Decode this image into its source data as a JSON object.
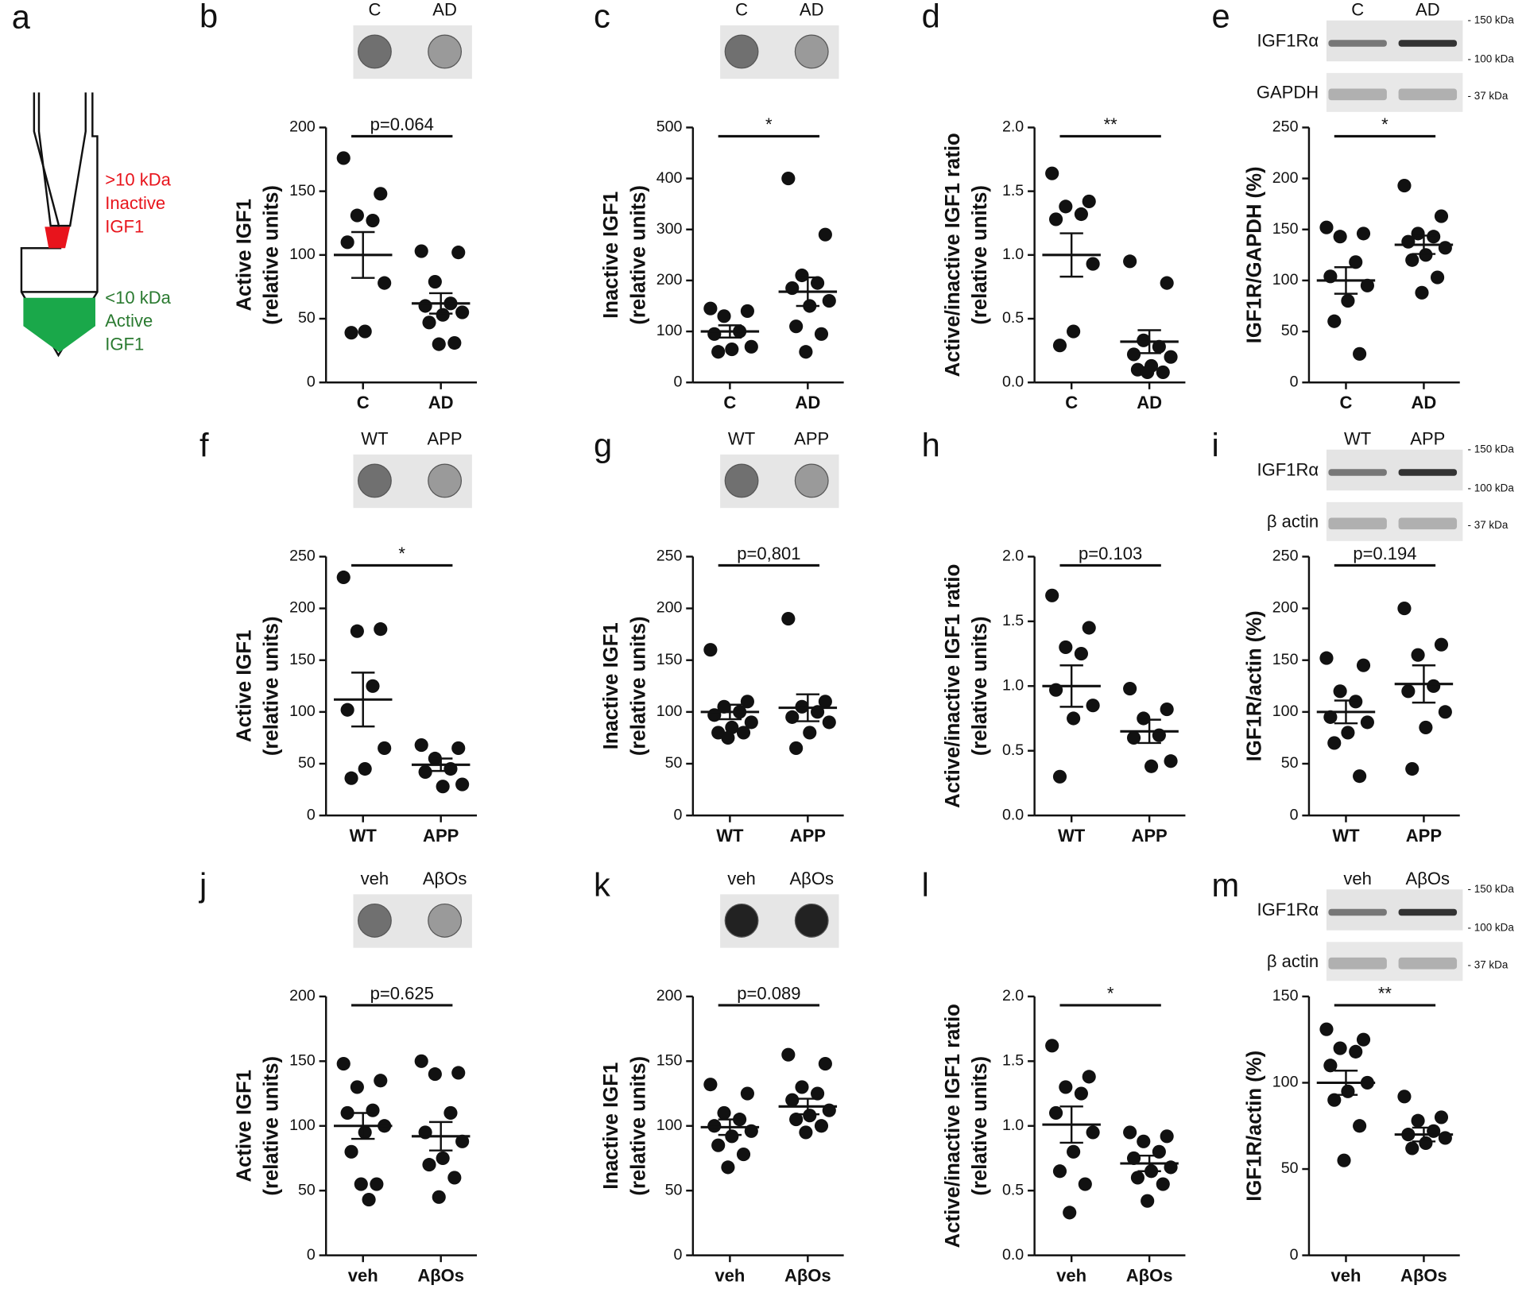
{
  "diagram": {
    "panel": "a",
    "upper_label": [
      ">10 kDa",
      "Inactive",
      "IGF1"
    ],
    "lower_label": [
      "<10 kDa",
      "Active",
      "IGF1"
    ]
  },
  "chart_data": [
    {
      "type": "strip",
      "panel": "b",
      "blot_lanes": [
        "C",
        "AD"
      ],
      "ylabel": [
        "Active IGF1",
        "(relative units)"
      ],
      "categories": [
        "C",
        "AD"
      ],
      "ylim": [
        0,
        200
      ],
      "yticks": [
        0,
        50,
        100,
        150,
        200
      ],
      "color": "#111111",
      "annotation": "p=0.064",
      "groups": [
        {
          "values": [
            176,
            148,
            131,
            127,
            110,
            78,
            40,
            39
          ],
          "mean": 100,
          "sem": 18
        },
        {
          "values": [
            103,
            102,
            79,
            62,
            60,
            55,
            53,
            47,
            31,
            30
          ],
          "mean": 62,
          "sem": 8
        }
      ]
    },
    {
      "type": "strip",
      "panel": "c",
      "blot_lanes": [
        "C",
        "AD"
      ],
      "ylabel": [
        "Inactive IGF1",
        "(relative units)"
      ],
      "categories": [
        "C",
        "AD"
      ],
      "ylim": [
        0,
        500
      ],
      "yticks": [
        0,
        100,
        200,
        300,
        400,
        500
      ],
      "color": "#111111",
      "annotation": "*",
      "groups": [
        {
          "values": [
            145,
            140,
            130,
            100,
            95,
            70,
            65,
            60
          ],
          "mean": 100,
          "sem": 12
        },
        {
          "values": [
            400,
            290,
            210,
            195,
            185,
            160,
            150,
            110,
            95,
            60
          ],
          "mean": 178,
          "sem": 28
        }
      ]
    },
    {
      "type": "strip",
      "panel": "d",
      "ylabel": [
        "Active/inactive IGF1 ratio",
        "(relative units)"
      ],
      "categories": [
        "C",
        "AD"
      ],
      "ylim": [
        0,
        2
      ],
      "yticks": [
        {
          "value": 0,
          "label": "0.0"
        },
        0.5,
        {
          "value": 1,
          "label": "1.0"
        },
        1.5,
        {
          "value": 2,
          "label": "2.0"
        }
      ],
      "color": "#111111",
      "annotation": "**",
      "groups": [
        {
          "values": [
            1.64,
            1.42,
            1.38,
            1.32,
            1.28,
            0.93,
            0.4,
            0.29
          ],
          "mean": 1.0,
          "sem": 0.17
        },
        {
          "values": [
            0.95,
            0.78,
            0.33,
            0.28,
            0.22,
            0.2,
            0.13,
            0.1,
            0.08,
            0.08
          ],
          "mean": 0.32,
          "sem": 0.09
        }
      ]
    },
    {
      "type": "strip",
      "panel": "e",
      "blot_lanes": [
        "C",
        "AD"
      ],
      "blot_rows": [
        "IGF1Rα",
        "GAPDH"
      ],
      "blot_markers": [
        "- 150 kDa",
        "- 100 kDa",
        "- 37 kDa"
      ],
      "ylabel": [
        "IGF1R/GAPDH (%)"
      ],
      "categories": [
        "C",
        "AD"
      ],
      "ylim": [
        0,
        250
      ],
      "yticks": [
        0,
        50,
        100,
        150,
        200,
        250
      ],
      "color": "#111111",
      "annotation": "*",
      "groups": [
        {
          "values": [
            152,
            146,
            143,
            118,
            104,
            95,
            80,
            60,
            28
          ],
          "mean": 100,
          "sem": 13
        },
        {
          "values": [
            193,
            163,
            146,
            143,
            138,
            132,
            125,
            120,
            103,
            88
          ],
          "mean": 135,
          "sem": 9
        }
      ]
    },
    {
      "type": "strip",
      "panel": "f",
      "blot_lanes": [
        "WT",
        "APP"
      ],
      "ylabel": [
        "Active IGF1",
        "(relative units)"
      ],
      "categories": [
        "WT",
        "APP"
      ],
      "ylim": [
        0,
        250
      ],
      "yticks": [
        0,
        50,
        100,
        150,
        200,
        250
      ],
      "color": "#111111",
      "annotation": "*",
      "groups": [
        {
          "values": [
            230,
            180,
            178,
            125,
            102,
            65,
            45,
            36
          ],
          "mean": 112,
          "sem": 26
        },
        {
          "values": [
            68,
            65,
            55,
            45,
            42,
            30,
            28
          ],
          "mean": 49,
          "sem": 6
        }
      ]
    },
    {
      "type": "strip",
      "panel": "g",
      "blot_lanes": [
        "WT",
        "APP"
      ],
      "ylabel": [
        "Inactive IGF1",
        "(relative units)"
      ],
      "categories": [
        "WT",
        "APP"
      ],
      "ylim": [
        0,
        250
      ],
      "yticks": [
        0,
        50,
        100,
        150,
        200,
        250
      ],
      "color": "#111111",
      "annotation": "p=0,801",
      "groups": [
        {
          "values": [
            160,
            110,
            105,
            100,
            97,
            90,
            85,
            80,
            80,
            75
          ],
          "mean": 100,
          "sem": 7
        },
        {
          "values": [
            190,
            110,
            105,
            100,
            95,
            90,
            80,
            65
          ],
          "mean": 104,
          "sem": 13
        }
      ]
    },
    {
      "type": "strip",
      "panel": "h",
      "ylabel": [
        "Active/inactive IGF1 ratio",
        "(relative units)"
      ],
      "categories": [
        "WT",
        "APP"
      ],
      "ylim": [
        0,
        2
      ],
      "yticks": [
        {
          "value": 0,
          "label": "0.0"
        },
        0.5,
        {
          "value": 1,
          "label": "1.0"
        },
        1.5,
        {
          "value": 2,
          "label": "2.0"
        }
      ],
      "color": "#111111",
      "annotation": "p=0.103",
      "groups": [
        {
          "values": [
            1.7,
            1.45,
            1.3,
            1.25,
            0.97,
            0.85,
            0.75,
            0.3
          ],
          "mean": 1.0,
          "sem": 0.16
        },
        {
          "values": [
            0.98,
            0.82,
            0.75,
            0.62,
            0.6,
            0.42,
            0.38
          ],
          "mean": 0.65,
          "sem": 0.09
        }
      ]
    },
    {
      "type": "strip",
      "panel": "i",
      "blot_lanes": [
        "WT",
        "APP"
      ],
      "blot_rows": [
        "IGF1Rα",
        "β actin"
      ],
      "blot_markers": [
        "- 150 kDa",
        "- 100 kDa",
        "- 37 kDa"
      ],
      "ylabel": [
        "IGF1R/actin (%)"
      ],
      "categories": [
        "WT",
        "APP"
      ],
      "ylim": [
        0,
        250
      ],
      "yticks": [
        0,
        50,
        100,
        150,
        200,
        250
      ],
      "color": "#111111",
      "annotation": "p=0.194",
      "groups": [
        {
          "values": [
            152,
            145,
            120,
            110,
            95,
            90,
            80,
            70,
            38
          ],
          "mean": 100,
          "sem": 11
        },
        {
          "values": [
            200,
            165,
            155,
            125,
            120,
            100,
            85,
            45
          ],
          "mean": 127,
          "sem": 18
        }
      ]
    },
    {
      "type": "strip",
      "panel": "j",
      "blot_lanes": [
        "veh",
        "AβOs"
      ],
      "ylabel": [
        "Active IGF1",
        "(relative units)"
      ],
      "categories": [
        "veh",
        "AβOs"
      ],
      "ylim": [
        0,
        200
      ],
      "yticks": [
        0,
        50,
        100,
        150,
        200
      ],
      "color": "#111111",
      "annotation": "p=0.625",
      "groups": [
        {
          "values": [
            148,
            135,
            130,
            112,
            110,
            100,
            95,
            80,
            55,
            55,
            43
          ],
          "mean": 100,
          "sem": 10
        },
        {
          "values": [
            150,
            141,
            140,
            110,
            95,
            88,
            75,
            70,
            60,
            45
          ],
          "mean": 92,
          "sem": 11
        }
      ]
    },
    {
      "type": "strip",
      "panel": "k",
      "blot_lanes": [
        "veh",
        "AβOs"
      ],
      "ylabel": [
        "Inactive IGF1",
        "(relative units)"
      ],
      "categories": [
        "veh",
        "AβOs"
      ],
      "ylim": [
        0,
        200
      ],
      "yticks": [
        0,
        50,
        100,
        150,
        200
      ],
      "color": "#111111",
      "annotation": "p=0.089",
      "groups": [
        {
          "values": [
            132,
            125,
            110,
            105,
            100,
            96,
            92,
            85,
            78,
            68
          ],
          "mean": 99,
          "sem": 6
        },
        {
          "values": [
            155,
            148,
            130,
            125,
            120,
            112,
            108,
            105,
            100,
            95
          ],
          "mean": 115,
          "sem": 6
        }
      ]
    },
    {
      "type": "strip",
      "panel": "l",
      "ylabel": [
        "Active/inactive IGF1 ratio",
        "(relative units)"
      ],
      "categories": [
        "veh",
        "AβOs"
      ],
      "ylim": [
        0,
        2
      ],
      "yticks": [
        {
          "value": 0,
          "label": "0.0"
        },
        0.5,
        {
          "value": 1,
          "label": "1.0"
        },
        1.5,
        {
          "value": 2,
          "label": "2.0"
        }
      ],
      "color": "#111111",
      "annotation": "*",
      "groups": [
        {
          "values": [
            1.62,
            1.38,
            1.3,
            1.25,
            1.1,
            0.95,
            0.8,
            0.65,
            0.55,
            0.33
          ],
          "mean": 1.01,
          "sem": 0.14
        },
        {
          "values": [
            0.95,
            0.92,
            0.88,
            0.8,
            0.75,
            0.68,
            0.65,
            0.6,
            0.55,
            0.42
          ],
          "mean": 0.71,
          "sem": 0.06
        }
      ]
    },
    {
      "type": "strip",
      "panel": "m",
      "blot_lanes": [
        "veh",
        "AβOs"
      ],
      "blot_rows": [
        "IGF1Rα",
        "β actin"
      ],
      "blot_markers": [
        "- 150 kDa",
        "- 100 kDa",
        "- 37 kDa"
      ],
      "ylabel": [
        "IGF1R/actin (%)"
      ],
      "categories": [
        "veh",
        "AβOs"
      ],
      "ylim": [
        0,
        150
      ],
      "yticks": [
        0,
        50,
        100,
        150
      ],
      "color": "#111111",
      "annotation": "**",
      "groups": [
        {
          "values": [
            131,
            125,
            120,
            118,
            110,
            100,
            95,
            90,
            75,
            55
          ],
          "mean": 100,
          "sem": 7
        },
        {
          "values": [
            92,
            80,
            78,
            72,
            70,
            68,
            65,
            62
          ],
          "mean": 70,
          "sem": 4
        }
      ]
    }
  ]
}
